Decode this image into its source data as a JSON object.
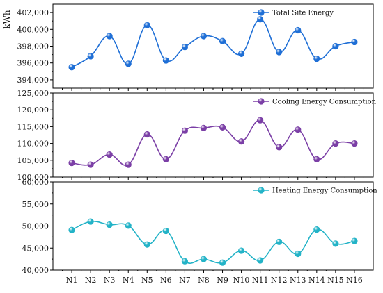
{
  "chart_data": {
    "type": "line",
    "categories": [
      "N1",
      "N2",
      "N3",
      "N4",
      "N5",
      "N6",
      "N7",
      "N8",
      "N9",
      "N10",
      "N11",
      "N12",
      "N13",
      "N14",
      "N15",
      "N16"
    ],
    "panels": [
      {
        "series": [
          {
            "name": "Total Site Energy",
            "color": "#1f6fd6",
            "values": [
              395500,
              396800,
              399200,
              395900,
              400500,
              396300,
              397900,
              399200,
              398600,
              397100,
              401200,
              397300,
              399900,
              396500,
              398000,
              398500
            ]
          }
        ],
        "ylabel": "kWh",
        "ylim": [
          393000,
          403000
        ],
        "yticks": [
          394000,
          396000,
          398000,
          400000,
          402000
        ],
        "ytick_labels": [
          "394,000",
          "396,000",
          "398,000",
          "400,000",
          "402,000"
        ],
        "legend_position": "top-right"
      },
      {
        "series": [
          {
            "name": "Cooling Energy Consumption",
            "color": "#7b3fa6",
            "values": [
              104200,
              103700,
              106700,
              103700,
              112700,
              105300,
              113800,
              114600,
              114800,
              110600,
              116900,
              108900,
              114100,
              105300,
              110000,
              110000
            ]
          }
        ],
        "ylabel": "",
        "ylim": [
          100000,
          125000
        ],
        "yticks": [
          100000,
          105000,
          110000,
          115000,
          120000,
          125000
        ],
        "ytick_labels": [
          "100,000",
          "105,000",
          "110,000",
          "115,000",
          "120,000",
          "125,000"
        ],
        "legend_position": "top-right"
      },
      {
        "series": [
          {
            "name": "Heating Energy Consumption",
            "color": "#23b3c7",
            "values": [
              49100,
              51000,
              50300,
              50100,
              45800,
              48900,
              42000,
              42500,
              41700,
              44400,
              42200,
              46400,
              43700,
              49200,
              46000,
              46600
            ]
          }
        ],
        "ylabel": "",
        "ylim": [
          40000,
          60000
        ],
        "yticks": [
          40000,
          45000,
          50000,
          55000,
          60000
        ],
        "ytick_labels": [
          "40,000",
          "45,000",
          "50,000",
          "55,000",
          "60,000"
        ],
        "legend_position": "top-right"
      }
    ]
  }
}
